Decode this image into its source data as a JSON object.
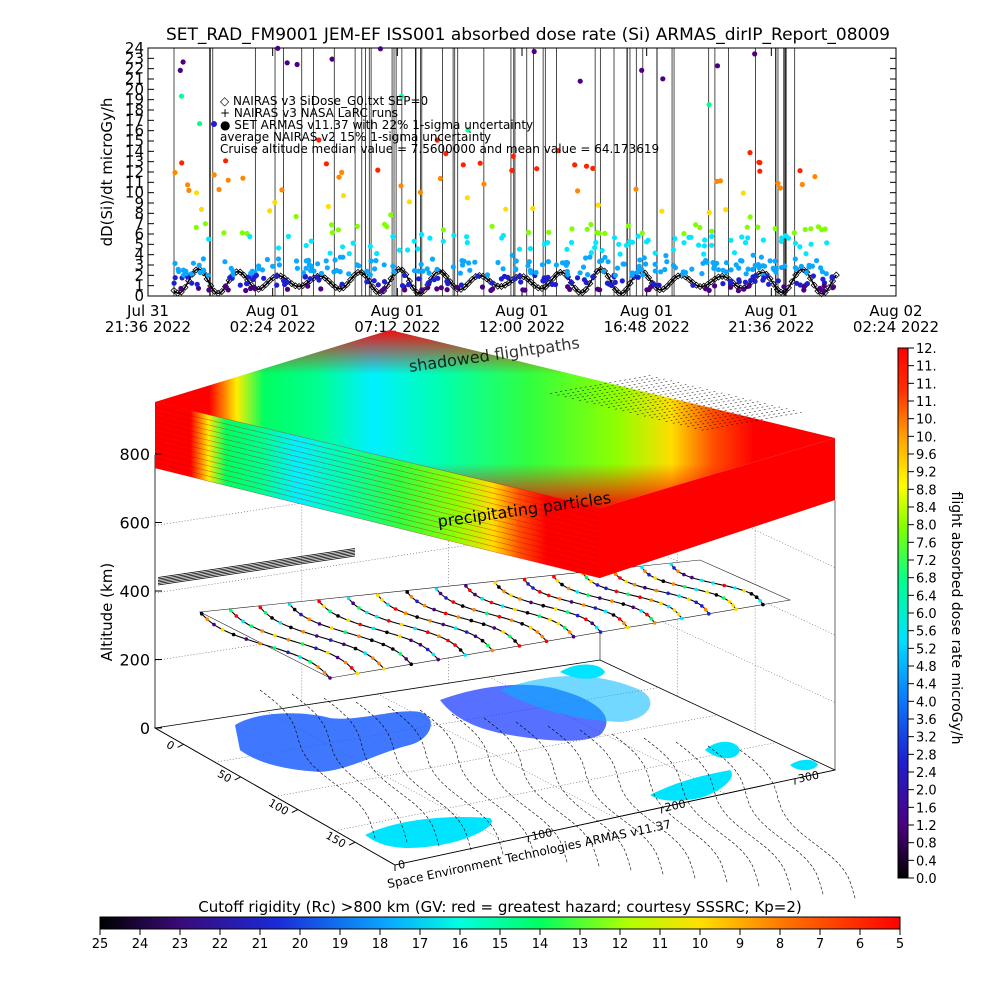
{
  "chart_data": {
    "type": "scatter",
    "title": "SET_RAD_FM9001  JEM-EF ISS001 absorbed dose rate (Si) ARMAS_dirIP_Report_08009",
    "ylabel": "dD(Si)/dt microGy/h",
    "ylim": [
      0,
      24
    ],
    "y_ticks": [
      "0",
      "1",
      "2",
      "3",
      "4",
      "5",
      "6",
      "7",
      "8",
      "9",
      "10",
      "11",
      "12",
      "13",
      "14",
      "15",
      "16",
      "17",
      "18",
      "19",
      "20",
      "21",
      "22",
      "23",
      "24"
    ],
    "x_ticks": [
      {
        "line1": "Jul 31",
        "line2": "21:36 2022"
      },
      {
        "line1": "Aug 01",
        "line2": "02:24 2022"
      },
      {
        "line1": "Aug 01",
        "line2": "07:12 2022"
      },
      {
        "line1": "Aug 01",
        "line2": "12:00 2022"
      },
      {
        "line1": "Aug 01",
        "line2": "16:48 2022"
      },
      {
        "line1": "Aug 01",
        "line2": "21:36 2022"
      },
      {
        "line1": "Aug 02",
        "line2": "02:24 2022"
      }
    ],
    "x_range_hours": [
      0,
      28.8
    ],
    "data_span_hours": [
      1.0,
      26.5
    ],
    "legend": [
      "◇ NAIRAS v3 SiDose_G0.txt SEP=0",
      "+ NAIRAS v3 NASA LaRC runs",
      "● SET ARMAS v11.37 with 22% 1-sigma uncertainty",
      "average NAIRAS v2 15% 1-sigma uncertainty",
      "Cruise altitude median value = 7.5600000 and mean value = 64.173619"
    ],
    "series": [
      {
        "name": "NAIRAS v3 SiDose_G0.txt SEP=0",
        "pattern": "oscillating baseline",
        "min": 0,
        "max": 3
      },
      {
        "name": "SET ARMAS v11.37",
        "median": 7.56,
        "mean": 64.173619
      }
    ],
    "annotations": [
      "shadowed flightpaths",
      "precipitating particles"
    ],
    "altitude_axis": {
      "label": "Altitude (km)",
      "ticks": [
        "0",
        "200",
        "400",
        "600",
        "800"
      ]
    },
    "latitude_ticks": [
      "0",
      "50",
      "100",
      "150"
    ],
    "longitude_ticks": [
      "0",
      "100",
      "200",
      "300"
    ],
    "credit": "Space Environment Technologies ARMAS v11.37",
    "colorbar_dose": {
      "label": "flight absorbed dose rate microGy/h",
      "ticks": [
        "0.0",
        "0.4",
        "0.8",
        "1.2",
        "1.6",
        "2.0",
        "2.4",
        "2.8",
        "3.2",
        "3.6",
        "4.0",
        "4.4",
        "4.8",
        "5.2",
        "5.6",
        "6.0",
        "6.4",
        "6.8",
        "7.2",
        "7.6",
        "8.0",
        "8.4",
        "8.8",
        "9.2",
        "9.6",
        "10.",
        "10.",
        "11.",
        "11.",
        "11.",
        "12."
      ]
    },
    "colorbar_rc": {
      "label": "Cutoff rigidity (Rc) >800 km (GV: red = greatest hazard; courtesy SSSRC; Kp=2)",
      "ticks": [
        "25",
        "24",
        "23",
        "22",
        "21",
        "20",
        "19",
        "18",
        "17",
        "16",
        "15",
        "14",
        "13",
        "12",
        "11",
        "10",
        "9",
        "8",
        "7",
        "6",
        "5"
      ]
    },
    "colors": {
      "nairas": "#000000",
      "armas_palette": [
        "#1f1fd0",
        "#4b0082",
        "#0aa8ff",
        "#00e8ff",
        "#80ff00",
        "#ffff00",
        "#ff9900",
        "#ff0000",
        "#00ff90",
        "#000000"
      ]
    }
  }
}
